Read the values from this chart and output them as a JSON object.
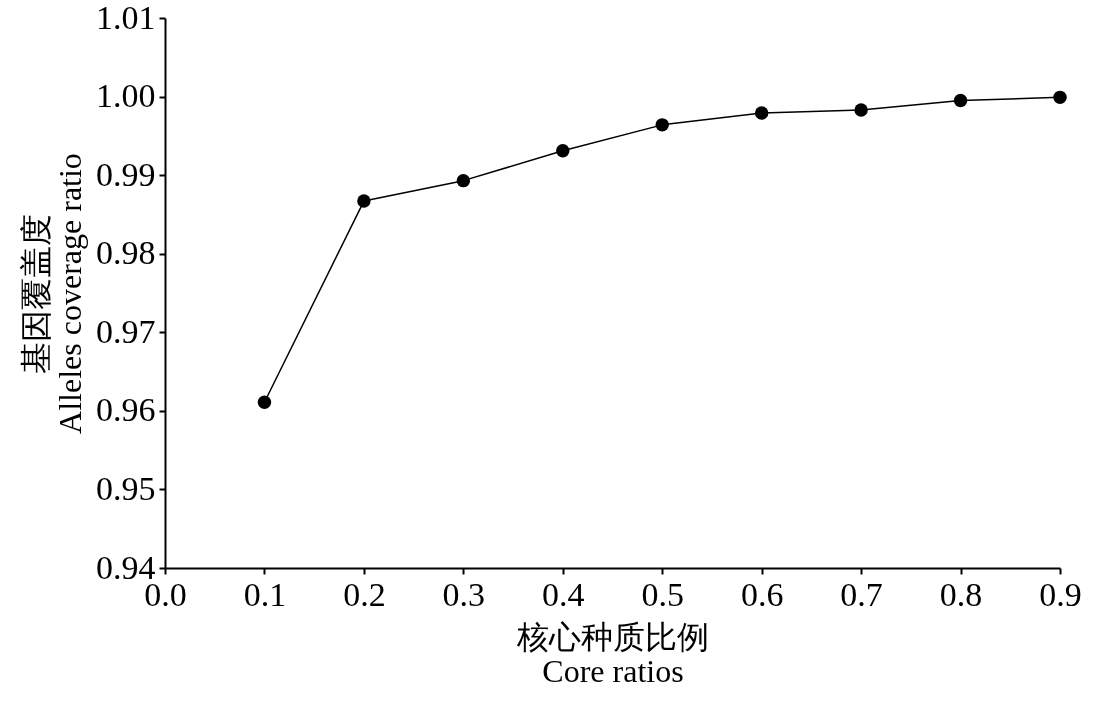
{
  "chart_data": {
    "type": "line",
    "xlabel": [
      "核心种质比例",
      "Core ratios"
    ],
    "ylabel": [
      "基因覆盖度",
      "Alleles coverage ratio"
    ],
    "x": [
      0.1,
      0.2,
      0.3,
      0.4,
      0.5,
      0.6,
      0.7,
      0.8,
      0.9
    ],
    "series": [
      {
        "color": "#000000",
        "values": [
          0.9611,
          0.9867,
          0.9893,
          0.9931,
          0.9964,
          0.9979,
          0.9983,
          0.9995,
          0.9999
        ]
      }
    ],
    "xlim": [
      0.0,
      0.9
    ],
    "ylim": [
      0.94,
      1.01
    ],
    "xticks": [
      {
        "value": 0.0,
        "label": "0.0"
      },
      0.1,
      0.2,
      0.3,
      0.4,
      0.5,
      0.6,
      0.7,
      0.8,
      0.9
    ],
    "yticks": [
      0.94,
      0.95,
      0.96,
      0.97,
      0.98,
      0.99,
      {
        "value": 1.0,
        "label": "1.00"
      },
      1.01
    ],
    "grid": false,
    "marker": "circle",
    "line_style": "solid"
  }
}
